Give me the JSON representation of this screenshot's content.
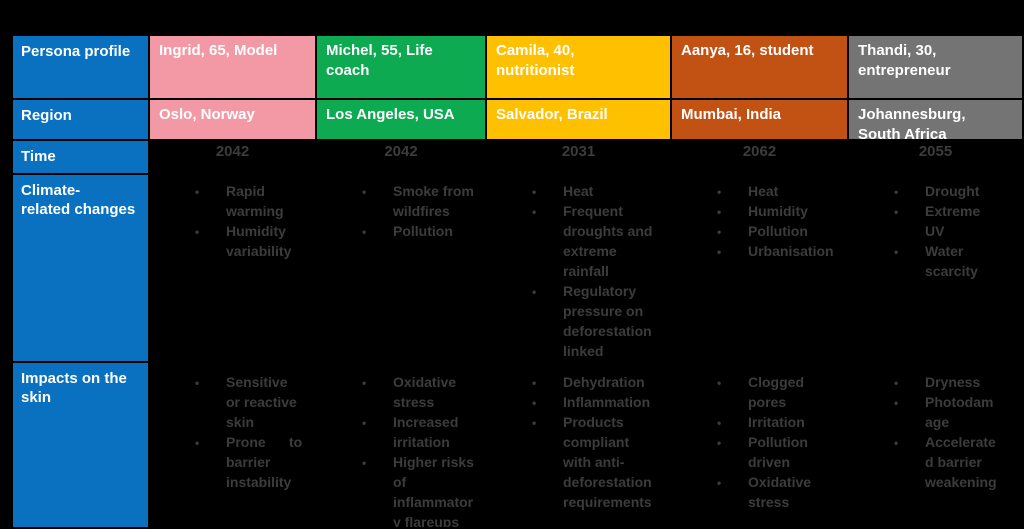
{
  "colors": {
    "page_bg": "#000000",
    "header_column_bg": "#0971c0",
    "body_text": "#3c3c3c",
    "header_text": "#ffffff"
  },
  "header_column": {
    "persona_label": "Persona profile",
    "region_label": "Region",
    "time_label": "Time",
    "climate_label": "Climate-\nrelated changes",
    "impacts_label": "Impacts on the skin"
  },
  "personas": [
    {
      "id": "ingrid",
      "profile": "Ingrid, 65, Model",
      "region": "Oslo, Norway",
      "time": "2042",
      "header_color": "#f299a5",
      "climate_changes": [
        "Rapid\nwarming",
        "Humidity\nvariability"
      ],
      "skin_impacts": [
        "Sensitive\nor reactive\nskin",
        "Prone      to\nbarrier\ninstability"
      ]
    },
    {
      "id": "michel",
      "profile": "Michel, 55, Life\ncoach",
      "region": "Los Angeles, USA",
      "time": "2042",
      "header_color": "#0daa52",
      "climate_changes": [
        "Smoke from\nwildfires",
        "Pollution"
      ],
      "skin_impacts": [
        "Oxidative\nstress",
        "Increased\nirritation",
        "Higher risks\nof\ninflammator\ny flareups"
      ]
    },
    {
      "id": "camila",
      "profile": "Camila, 40,\nnutritionist",
      "region": "Salvador, Brazil",
      "time": "2031",
      "header_color": "#ffc000",
      "climate_changes": [
        "Heat",
        "Frequent\ndroughts and\nextreme\nrainfall",
        "Regulatory\npressure on\ndeforestation\nlinked\ningredients"
      ],
      "skin_impacts": [
        "Dehydration",
        "Inflammation",
        "Products\ncompliant\nwith anti-\ndeforestation\nrequirements"
      ]
    },
    {
      "id": "aanya",
      "profile": "Aanya, 16, student",
      "region": "Mumbai, India",
      "time": "2062",
      "header_color": "#c25214",
      "climate_changes": [
        "Heat",
        "Humidity",
        "Pollution",
        "Urbanisation"
      ],
      "skin_impacts": [
        "Clogged\npores",
        "Irritation",
        "Pollution\ndriven",
        "Oxidative\nstress"
      ]
    },
    {
      "id": "thandi",
      "profile": "Thandi, 30,\nentrepreneur",
      "region": "Johannesburg,\nSouth Africa",
      "time": "2055",
      "header_color": "#747474",
      "climate_changes": [
        "Drought",
        "Extreme\nUV",
        "Water\nscarcity"
      ],
      "skin_impacts": [
        "Dryness",
        "Photodam\nage",
        "Accelerate\nd barrier\nweakening"
      ]
    }
  ]
}
